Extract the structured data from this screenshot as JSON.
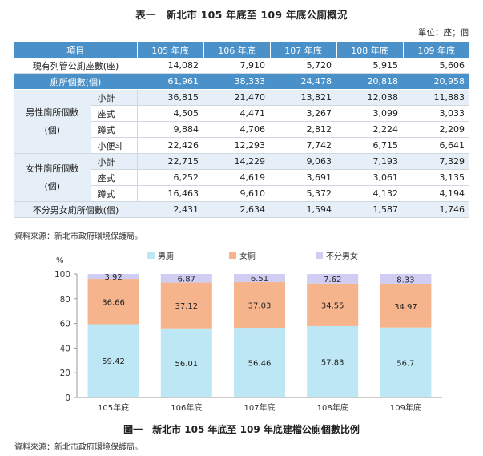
{
  "header": {
    "title": "表一　新北市 105 年底至 109 年底公廁概況",
    "unit": "單位：座；個"
  },
  "table": {
    "columns": [
      "項目",
      "105 年底",
      "106 年底",
      "107 年底",
      "108 年底",
      "109 年底"
    ],
    "rows": [
      {
        "group": "",
        "label": "現有列管公廁座數(座)",
        "values": [
          "14,082",
          "7,910",
          "5,720",
          "5,915",
          "5,606"
        ]
      },
      {
        "group": "",
        "label": "廁所個數(個)",
        "values": [
          "61,961",
          "38,333",
          "24,478",
          "20,818",
          "20,958"
        ]
      },
      {
        "group": "男性廁所個數(個)",
        "label": "小計",
        "values": [
          "36,815",
          "21,470",
          "13,821",
          "12,038",
          "11,883"
        ]
      },
      {
        "group": "",
        "label": "座式",
        "values": [
          "4,505",
          "4,471",
          "3,267",
          "3,099",
          "3,033"
        ]
      },
      {
        "group": "",
        "label": "蹲式",
        "values": [
          "9,884",
          "4,706",
          "2,812",
          "2,224",
          "2,209"
        ]
      },
      {
        "group": "",
        "label": "小便斗",
        "values": [
          "22,426",
          "12,293",
          "7,742",
          "6,715",
          "6,641"
        ]
      },
      {
        "group": "女性廁所個數(個)",
        "label": "小計",
        "values": [
          "22,715",
          "14,229",
          "9,063",
          "7,193",
          "7,329"
        ]
      },
      {
        "group": "",
        "label": "座式",
        "values": [
          "6,252",
          "4,619",
          "3,691",
          "3,061",
          "3,135"
        ]
      },
      {
        "group": "",
        "label": "蹲式",
        "values": [
          "16,463",
          "9,610",
          "5,372",
          "4,132",
          "4,194"
        ]
      },
      {
        "group": "",
        "label": "不分男女廁所個數(個)",
        "values": [
          "2,431",
          "2,634",
          "1,594",
          "1,587",
          "1,746"
        ]
      }
    ]
  },
  "source_1": "資料來源：新北市政府環境保護局。",
  "source_2": "資料來源：新北市政府環境保護局。",
  "chart_data": {
    "type": "bar",
    "stacked": true,
    "title": "圖一　新北市 105 年底至 109 年底建檔公廁個數比例",
    "ylabel": "%",
    "ylim": [
      0,
      100
    ],
    "yticks": [
      0,
      20,
      40,
      60,
      80,
      100
    ],
    "categories": [
      "105年底",
      "106年底",
      "107年底",
      "108年底",
      "109年底"
    ],
    "series": [
      {
        "name": "男廁",
        "color": "#bde7f5",
        "values": [
          59.42,
          56.01,
          56.46,
          57.83,
          56.7
        ]
      },
      {
        "name": "女廁",
        "color": "#f6b48c",
        "values": [
          36.66,
          37.12,
          37.03,
          34.55,
          34.97
        ]
      },
      {
        "name": "不分男女",
        "color": "#cfcdf2",
        "values": [
          3.92,
          6.87,
          6.51,
          7.62,
          8.33
        ]
      }
    ],
    "legend": "top",
    "grid": false
  }
}
